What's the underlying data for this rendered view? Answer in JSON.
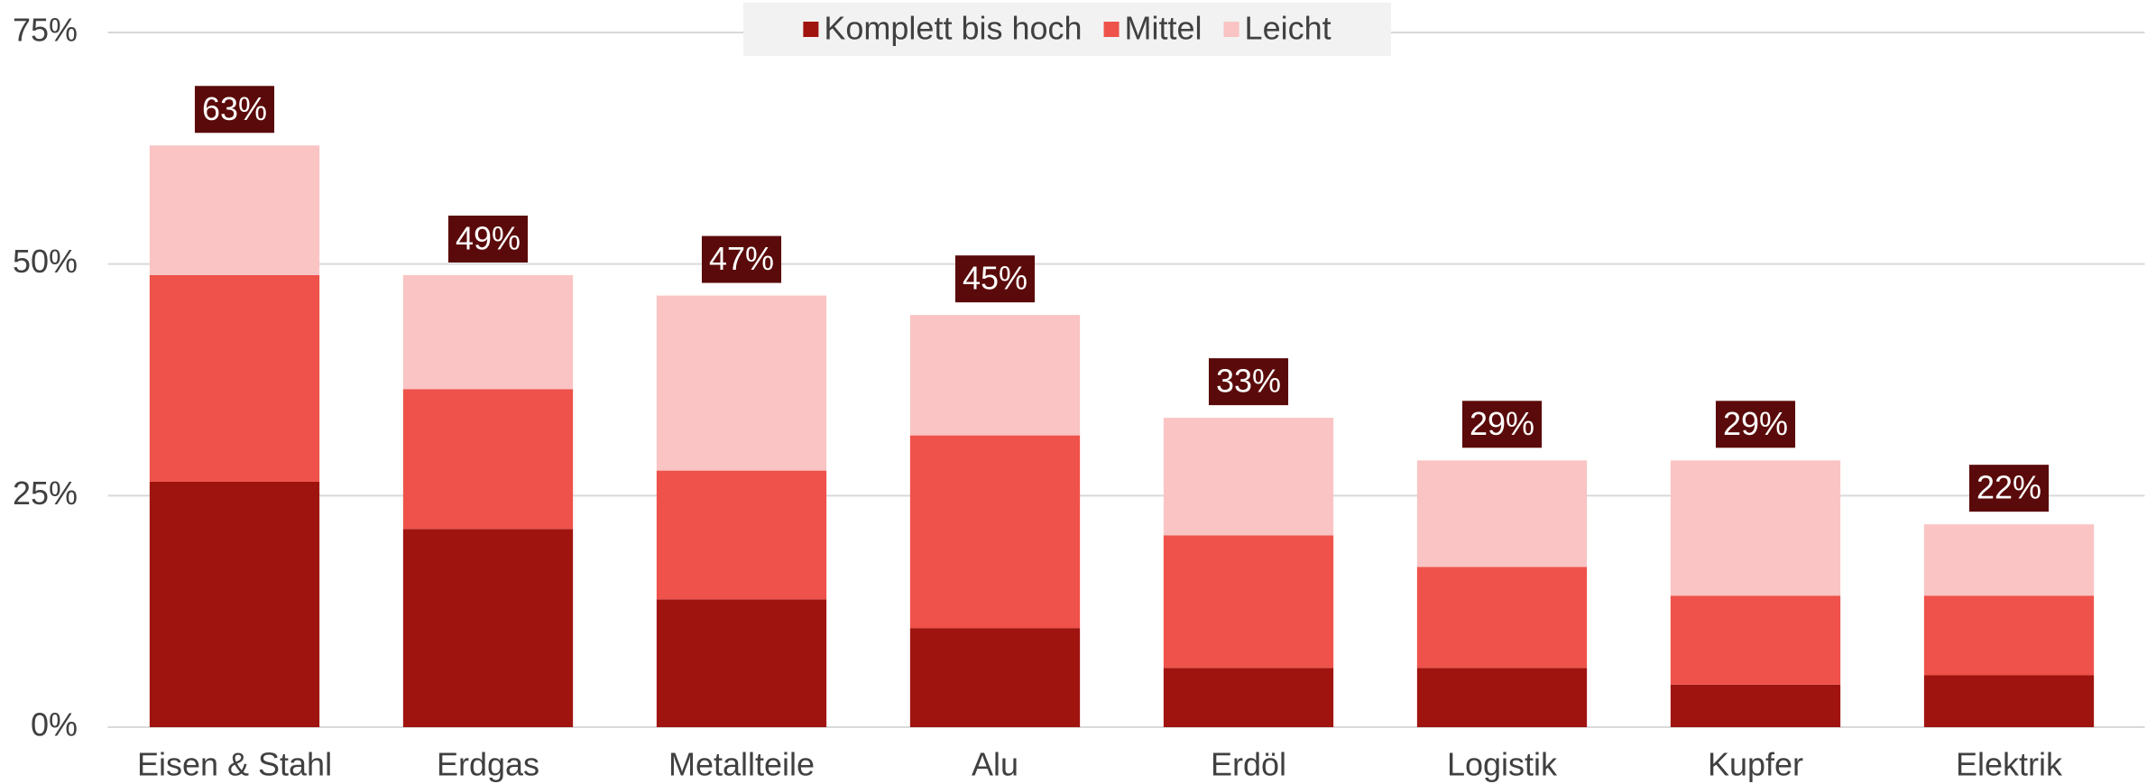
{
  "chart_data": {
    "type": "stacked_bar",
    "categories": [
      "Eisen & Stahl",
      "Erdgas",
      "Metallteile",
      "Alu",
      "Erdöl",
      "Logistik",
      "Kupfer",
      "Elektrik"
    ],
    "series": [
      {
        "name": "Komplett bis hoch",
        "color": "#a01410",
        "values": [
          26.5,
          21.4,
          13.8,
          10.7,
          6.4,
          6.4,
          4.6,
          5.6
        ]
      },
      {
        "name": "Mittel",
        "color": "#ee524a",
        "values": [
          22.3,
          15.1,
          13.9,
          20.8,
          14.3,
          10.9,
          9.6,
          8.6
        ]
      },
      {
        "name": "Leicht",
        "color": "#f9c4c3",
        "values": [
          14.0,
          12.3,
          18.9,
          13.0,
          12.7,
          11.5,
          14.6,
          7.7
        ]
      }
    ],
    "totals": [
      63,
      49,
      47,
      45,
      33,
      29,
      29,
      22
    ],
    "total_labels": [
      "63%",
      "49%",
      "47%",
      "45%",
      "33%",
      "29%",
      "29%",
      "22%"
    ],
    "ylim": [
      0,
      75
    ],
    "yticks": [
      {
        "value": 0,
        "label": "0%"
      },
      {
        "value": 25,
        "label": "25%"
      },
      {
        "value": 50,
        "label": "50%"
      },
      {
        "value": 75,
        "label": "75%"
      }
    ],
    "grid": true,
    "legend": "top"
  }
}
